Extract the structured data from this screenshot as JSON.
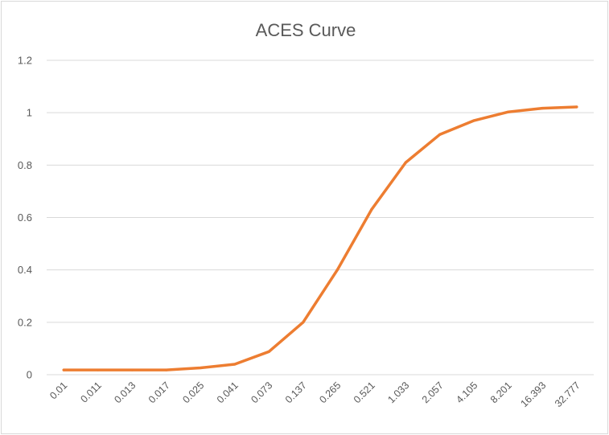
{
  "chart_data": {
    "type": "line",
    "title": "ACES Curve",
    "xlabel": "",
    "ylabel": "",
    "x": [
      "0.01",
      "0.011",
      "0.013",
      "0.017",
      "0.025",
      "0.041",
      "0.073",
      "0.137",
      "0.265",
      "0.521",
      "1.033",
      "2.057",
      "4.105",
      "8.201",
      "16.393",
      "32.777"
    ],
    "yticks": [
      "0",
      "0.2",
      "0.4",
      "0.6",
      "0.8",
      "1",
      "1.2"
    ],
    "ylim": [
      0,
      1.2
    ],
    "grid": true,
    "legend": "none",
    "series": [
      {
        "color": "#ed7d31",
        "values": [
          0.018,
          0.018,
          0.018,
          0.018,
          0.026,
          0.04,
          0.088,
          0.2,
          0.4,
          0.63,
          0.81,
          0.917,
          0.97,
          1.003,
          1.017,
          1.022
        ]
      }
    ]
  }
}
